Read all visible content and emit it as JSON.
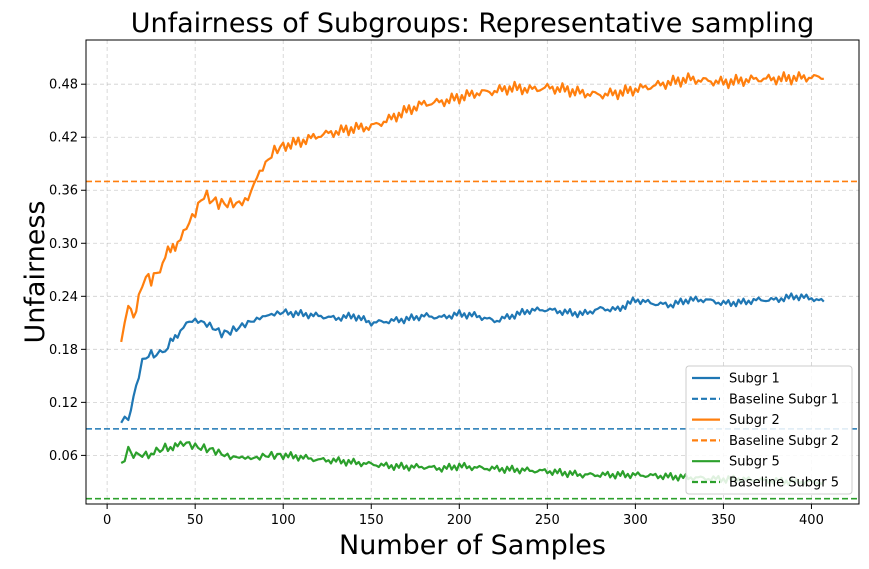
{
  "chart_data": {
    "type": "line",
    "title": "Unfairness of Subgroups: Representative sampling",
    "xlabel": "Number of Samples",
    "ylabel": "Unfairness",
    "xlim": [
      -12,
      427
    ],
    "ylim": [
      0.005,
      0.53
    ],
    "xticks": [
      0,
      50,
      100,
      150,
      200,
      250,
      300,
      350,
      400
    ],
    "yticks": [
      0.06,
      0.12,
      0.18,
      0.24,
      0.3,
      0.36,
      0.42,
      0.48
    ],
    "ytick_labels": [
      "0.06",
      "0.12",
      "0.18",
      "0.24",
      "0.30",
      "0.36",
      "0.42",
      "0.48"
    ],
    "grid": true,
    "legend_position": "lower-right",
    "series": [
      {
        "name": "Subgr 1",
        "color": "#1f77b4",
        "style": "solid",
        "x": [
          8,
          10,
          12,
          15,
          18,
          20,
          22,
          25,
          28,
          30,
          33,
          36,
          40,
          45,
          50,
          55,
          60,
          65,
          70,
          75,
          80,
          85,
          90,
          95,
          100,
          110,
          120,
          130,
          140,
          150,
          160,
          170,
          180,
          190,
          200,
          210,
          220,
          230,
          240,
          250,
          260,
          270,
          280,
          290,
          300,
          310,
          320,
          330,
          340,
          350,
          360,
          370,
          380,
          390,
          400,
          407
        ],
        "y": [
          0.098,
          0.105,
          0.1,
          0.125,
          0.15,
          0.165,
          0.17,
          0.175,
          0.172,
          0.178,
          0.178,
          0.188,
          0.195,
          0.21,
          0.213,
          0.21,
          0.205,
          0.198,
          0.2,
          0.205,
          0.21,
          0.214,
          0.218,
          0.22,
          0.222,
          0.22,
          0.218,
          0.215,
          0.218,
          0.21,
          0.212,
          0.214,
          0.218,
          0.216,
          0.22,
          0.218,
          0.212,
          0.218,
          0.224,
          0.225,
          0.222,
          0.22,
          0.226,
          0.225,
          0.236,
          0.232,
          0.23,
          0.236,
          0.236,
          0.232,
          0.233,
          0.236,
          0.236,
          0.24,
          0.238,
          0.234
        ]
      },
      {
        "name": "Baseline Subgr 1",
        "color": "#1f77b4",
        "style": "dashed",
        "y_constant": 0.09
      },
      {
        "name": "Subgr 2",
        "color": "#ff7f0e",
        "style": "solid",
        "x": [
          8,
          10,
          12,
          15,
          18,
          20,
          22,
          25,
          28,
          30,
          33,
          36,
          40,
          45,
          50,
          55,
          60,
          65,
          70,
          75,
          80,
          85,
          90,
          95,
          100,
          110,
          120,
          130,
          140,
          150,
          160,
          170,
          180,
          190,
          200,
          210,
          220,
          230,
          240,
          250,
          260,
          270,
          280,
          290,
          300,
          310,
          320,
          330,
          340,
          350,
          360,
          370,
          380,
          390,
          400,
          407
        ],
        "y": [
          0.19,
          0.205,
          0.23,
          0.215,
          0.24,
          0.255,
          0.262,
          0.258,
          0.27,
          0.27,
          0.285,
          0.295,
          0.3,
          0.318,
          0.335,
          0.355,
          0.348,
          0.345,
          0.345,
          0.345,
          0.35,
          0.375,
          0.39,
          0.405,
          0.41,
          0.415,
          0.422,
          0.426,
          0.43,
          0.432,
          0.44,
          0.45,
          0.458,
          0.46,
          0.465,
          0.47,
          0.472,
          0.476,
          0.474,
          0.476,
          0.474,
          0.47,
          0.468,
          0.47,
          0.474,
          0.478,
          0.482,
          0.486,
          0.484,
          0.482,
          0.484,
          0.486,
          0.486,
          0.487,
          0.488,
          0.486
        ]
      },
      {
        "name": "Baseline Subgr 2",
        "color": "#ff7f0e",
        "style": "dashed",
        "y_constant": 0.37
      },
      {
        "name": "Subgr 5",
        "color": "#2ca02c",
        "style": "solid",
        "x": [
          8,
          10,
          12,
          15,
          18,
          20,
          22,
          25,
          28,
          30,
          33,
          36,
          40,
          45,
          50,
          55,
          60,
          65,
          70,
          75,
          80,
          85,
          90,
          95,
          100,
          110,
          120,
          130,
          140,
          150,
          160,
          170,
          180,
          190,
          200,
          210,
          220,
          230,
          240,
          250,
          260,
          270,
          280,
          290,
          300,
          310,
          320,
          330,
          340,
          350,
          360,
          370,
          380,
          390,
          400,
          407
        ],
        "y": [
          0.05,
          0.058,
          0.068,
          0.06,
          0.062,
          0.058,
          0.062,
          0.06,
          0.065,
          0.063,
          0.07,
          0.068,
          0.072,
          0.074,
          0.07,
          0.068,
          0.066,
          0.062,
          0.058,
          0.058,
          0.057,
          0.057,
          0.06,
          0.06,
          0.06,
          0.058,
          0.055,
          0.054,
          0.052,
          0.05,
          0.048,
          0.047,
          0.047,
          0.045,
          0.048,
          0.046,
          0.045,
          0.044,
          0.043,
          0.042,
          0.04,
          0.038,
          0.038,
          0.038,
          0.038,
          0.037,
          0.036,
          0.035,
          0.034,
          0.033,
          0.033,
          0.032,
          0.031,
          0.03,
          0.03,
          0.03
        ]
      },
      {
        "name": "Baseline Subgr 5",
        "color": "#2ca02c",
        "style": "dashed",
        "y_constant": 0.011
      }
    ]
  }
}
